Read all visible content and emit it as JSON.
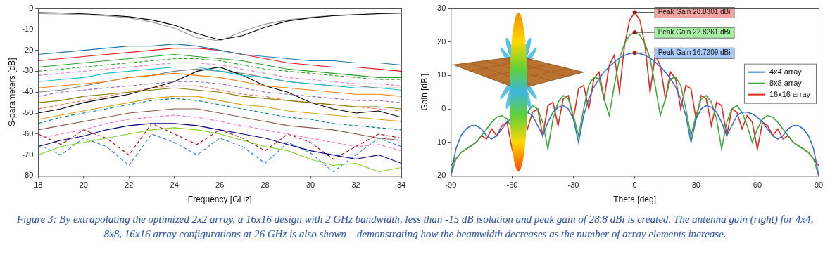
{
  "chart_data": [
    {
      "type": "line",
      "x_label": "Frequency [GHz]",
      "y_label": "S-parameters [dB]",
      "x": [
        18,
        19,
        20,
        21,
        22,
        23,
        24,
        25,
        26,
        27,
        28,
        29,
        30,
        31,
        32,
        33,
        34
      ],
      "xlim": [
        18,
        34
      ],
      "xticks": [
        18,
        20,
        22,
        24,
        26,
        28,
        30,
        32,
        34
      ],
      "ylim": [
        -80,
        0
      ],
      "yticks": [
        -80,
        -70,
        -60,
        -50,
        -40,
        -30,
        -20,
        -10,
        0
      ],
      "grid": false,
      "series": [
        {
          "color": "#000000",
          "line_style": "solid",
          "values": [
            -2,
            -2.2,
            -2.6,
            -3.2,
            -4,
            -5.5,
            -8,
            -12,
            -15,
            -13,
            -9,
            -6,
            -4.5,
            -3.5,
            -3,
            -2.5,
            -2.2
          ]
        },
        {
          "color": "#9a9a9a",
          "line_style": "solid",
          "values": [
            -2.5,
            -2.7,
            -3,
            -3.6,
            -4.5,
            -6.5,
            -9.5,
            -14,
            -15.5,
            -11,
            -7.5,
            -5.5,
            -4.2,
            -3.4,
            -2.9,
            -2.6,
            -2.4
          ]
        },
        {
          "color": "#1f77b4",
          "line_style": "solid",
          "values": [
            -22,
            -21,
            -20,
            -19,
            -18,
            -18,
            -17,
            -18,
            -20,
            -22,
            -23,
            -24,
            -25,
            -25,
            -26,
            -26,
            -27
          ]
        },
        {
          "color": "#e31a1c",
          "line_style": "solid",
          "values": [
            -25,
            -24,
            -23,
            -22,
            -21,
            -20,
            -19,
            -19,
            -20,
            -22,
            -24,
            -26,
            -27,
            -28,
            -28,
            -29,
            -30
          ]
        },
        {
          "color": "#2ca02c",
          "line_style": "solid",
          "values": [
            -28,
            -27,
            -26,
            -25,
            -24,
            -23,
            -22,
            -23,
            -24,
            -25,
            -27,
            -29,
            -30,
            -31,
            -32,
            -33,
            -33
          ]
        },
        {
          "color": "#e377c2",
          "line_style": "dashed",
          "values": [
            -32,
            -31,
            -30,
            -29,
            -28,
            -27,
            -26,
            -26,
            -27,
            -29,
            -31,
            -33,
            -34,
            -35,
            -36,
            -36,
            -37
          ]
        },
        {
          "color": "#17becf",
          "line_style": "solid",
          "values": [
            -35,
            -34,
            -33,
            -31,
            -30,
            -29,
            -28,
            -28,
            -30,
            -32,
            -33,
            -35,
            -36,
            -37,
            -38,
            -38,
            -39
          ]
        },
        {
          "color": "#ff7f0e",
          "line_style": "solid",
          "values": [
            -38,
            -37,
            -36,
            -35,
            -33,
            -32,
            -31,
            -32,
            -33,
            -35,
            -37,
            -38,
            -39,
            -40,
            -41,
            -41,
            -42
          ]
        },
        {
          "color": "#9467bd",
          "line_style": "dashed",
          "values": [
            -42,
            -40,
            -39,
            -38,
            -37,
            -36,
            -35,
            -35,
            -36,
            -38,
            -40,
            -41,
            -42,
            -43,
            -44,
            -44,
            -45
          ]
        },
        {
          "color": "#808000",
          "line_style": "solid",
          "values": [
            -45,
            -44,
            -42,
            -41,
            -40,
            -39,
            -38,
            -39,
            -40,
            -42,
            -43,
            -44,
            -45,
            -46,
            -47,
            -47,
            -48
          ]
        },
        {
          "color": "#000000",
          "line_style": "solid",
          "values": [
            -50,
            -48,
            -45,
            -43,
            -41,
            -38,
            -35,
            -30,
            -28,
            -32,
            -37,
            -40,
            -45,
            -48,
            -50,
            -49,
            -52
          ]
        },
        {
          "color": "#008080",
          "line_style": "dashed",
          "values": [
            -55,
            -52,
            -50,
            -48,
            -46,
            -44,
            -43,
            -44,
            -46,
            -48,
            -50,
            -52,
            -53,
            -55,
            -56,
            -57,
            -58
          ]
        },
        {
          "color": "#8c564b",
          "line_style": "solid",
          "values": [
            -58,
            -56,
            -54,
            -52,
            -50,
            -49,
            -48,
            -48,
            -50,
            -52,
            -54,
            -56,
            -57,
            -58,
            -60,
            -62,
            -63
          ]
        },
        {
          "color": "#ff69b4",
          "line_style": "dashed",
          "values": [
            -62,
            -60,
            -58,
            -55,
            -53,
            -52,
            -51,
            -52,
            -54,
            -56,
            -58,
            -60,
            -62,
            -64,
            -66,
            -65,
            -68
          ]
        },
        {
          "color": "#000080",
          "line_style": "solid",
          "values": [
            -66,
            -63,
            -61,
            -58,
            -56,
            -55,
            -55,
            -56,
            -58,
            -60,
            -62,
            -65,
            -68,
            -70,
            -72,
            -70,
            -74
          ]
        },
        {
          "color": "#7fd320",
          "line_style": "solid",
          "values": [
            -70,
            -66,
            -64,
            -62,
            -60,
            -58,
            -57,
            -58,
            -60,
            -63,
            -66,
            -68,
            -72,
            -75,
            -74,
            -78,
            -76
          ]
        },
        {
          "color": "#a50f15",
          "line_style": "dashed",
          "values": [
            -60,
            -65,
            -58,
            -62,
            -70,
            -55,
            -60,
            -65,
            -58,
            -62,
            -68,
            -60,
            -64,
            -72,
            -66,
            -60,
            -62
          ]
        },
        {
          "color": "#3a7bd5",
          "line_style": "dashed",
          "values": [
            -65,
            -70,
            -62,
            -66,
            -75,
            -60,
            -64,
            -70,
            -62,
            -66,
            -74,
            -64,
            -69,
            -78,
            -70,
            -62,
            -66
          ]
        },
        {
          "color": "#33a02c",
          "line_style": "dashed",
          "values": [
            -30,
            -29,
            -28,
            -27,
            -26,
            -25,
            -24,
            -24,
            -25,
            -27,
            -29,
            -30,
            -31,
            -32,
            -33,
            -34,
            -34
          ]
        },
        {
          "color": "#fb6a4a",
          "line_style": "dashed",
          "values": [
            -48,
            -46,
            -44,
            -42,
            -40,
            -38,
            -37,
            -37,
            -39,
            -41,
            -42,
            -44,
            -45,
            -46,
            -47,
            -48,
            -49
          ]
        },
        {
          "color": "#d4a017",
          "line_style": "solid",
          "values": [
            -53,
            -51,
            -49,
            -47,
            -45,
            -43,
            -42,
            -42,
            -44,
            -46,
            -47,
            -49,
            -50,
            -51,
            -52,
            -53,
            -54
          ]
        },
        {
          "color": "#7f7f7f",
          "line_style": "solid",
          "values": [
            -40,
            -39,
            -37,
            -35,
            -33,
            -32,
            -30,
            -29,
            -30,
            -31,
            -33,
            -35,
            -36,
            -37,
            -37,
            -38,
            -38
          ]
        }
      ]
    },
    {
      "type": "line",
      "x_label": "Theta [deg]",
      "y_label": "Gain [dBi]",
      "x": [
        -90,
        -87.5,
        -85,
        -82.5,
        -80,
        -77.5,
        -75,
        -72.5,
        -70,
        -67.5,
        -65,
        -62.5,
        -60,
        -57.5,
        -55,
        -52.5,
        -50,
        -47.5,
        -45,
        -42.5,
        -40,
        -37.5,
        -35,
        -32.5,
        -30,
        -27.5,
        -25,
        -22.5,
        -20,
        -17.5,
        -15,
        -12.5,
        -10,
        -7.5,
        -5,
        -2.5,
        0,
        2.5,
        5,
        7.5,
        10,
        12.5,
        15,
        17.5,
        20,
        22.5,
        25,
        27.5,
        30,
        32.5,
        35,
        37.5,
        40,
        42.5,
        45,
        47.5,
        50,
        52.5,
        55,
        57.5,
        60,
        62.5,
        65,
        67.5,
        70,
        72.5,
        75,
        77.5,
        80,
        82.5,
        85,
        87.5,
        90
      ],
      "xlim": [
        -90,
        90
      ],
      "xticks": [
        -90,
        -60,
        -30,
        0,
        30,
        60,
        90
      ],
      "ylim": [
        -20,
        30
      ],
      "yticks": [
        -20,
        -10,
        0,
        10,
        20,
        30
      ],
      "grid": false,
      "legend": "right",
      "series": [
        {
          "name": "4x4 array",
          "color": "#3a6fc4",
          "line_style": "solid",
          "values": [
            -20,
            -12,
            -8,
            -6,
            -5,
            -5,
            -6,
            -8,
            -9,
            -8,
            -6,
            -4,
            -2.5,
            -1.5,
            -1,
            -1,
            -2,
            -5,
            -8,
            -4,
            -1,
            0.5,
            1,
            0,
            -3,
            -10,
            -2,
            3,
            6.5,
            9,
            11,
            12.6,
            14,
            15.2,
            16,
            16.5,
            16.7209,
            16.5,
            16,
            15.2,
            14,
            12.6,
            11,
            9,
            6.5,
            3,
            -2,
            -10,
            -3,
            0,
            1,
            0.5,
            -1,
            -4,
            -8,
            -5,
            -2,
            -1,
            -1,
            -1.5,
            -2.5,
            -4,
            -6,
            -8,
            -9,
            -8,
            -6,
            -5,
            -5,
            -6,
            -8,
            -12,
            -20
          ]
        },
        {
          "name": "8x8 array",
          "color": "#3cab3c",
          "line_style": "solid",
          "values": [
            -20,
            -15,
            -13,
            -12,
            -11,
            -10,
            -8,
            -6,
            -4,
            -2.5,
            -2,
            -3,
            -6,
            -10,
            -5,
            -1,
            1,
            0,
            -4,
            -12,
            -3,
            2,
            4,
            3,
            -2,
            -8,
            0,
            7,
            9.5,
            9,
            3,
            -2,
            7,
            15,
            19.5,
            22,
            22.8261,
            22,
            19.5,
            15,
            7,
            -2,
            3,
            9,
            9.5,
            7,
            0,
            -8,
            -2,
            3,
            4,
            2,
            -3,
            -12,
            -4,
            0,
            1,
            -1,
            -5,
            -10,
            -6,
            -3,
            -2,
            -2.5,
            -4,
            -6,
            -8,
            -10,
            -11,
            -12,
            -13,
            -15,
            -20
          ]
        },
        {
          "name": "16x16 array",
          "color": "#e0281e",
          "line_style": "solid",
          "values": [
            -17,
            -15,
            -13,
            -12,
            -11,
            -10,
            -8,
            -9,
            -6,
            -8,
            -5,
            -4,
            -12,
            -4,
            -2,
            -6,
            -1,
            0,
            -8,
            1,
            2,
            -5,
            3,
            4,
            -3,
            6,
            7,
            0,
            9,
            11,
            3,
            13,
            16,
            5,
            19,
            26.5,
            28.8301,
            26.5,
            19,
            5,
            16,
            13,
            3,
            11,
            9,
            0,
            7,
            6,
            -3,
            4,
            3,
            -5,
            2,
            1,
            -8,
            0,
            -1,
            -6,
            -2,
            -4,
            -12,
            -4,
            -5,
            -8,
            -6,
            -9,
            -8,
            -10,
            -11,
            -12,
            -13,
            -15,
            -17
          ]
        }
      ],
      "annotations": [
        {
          "text": "Peak Gain 28.8301 dBi",
          "x": 0,
          "y": 28.8301,
          "color": "#f4a3a3"
        },
        {
          "text": "Peak Gain 22.8261 dBi",
          "x": 0,
          "y": 22.8261,
          "color": "#a6eea0"
        },
        {
          "text": "Peak Gain 16.7209 dBi",
          "x": 0,
          "y": 16.7209,
          "color": "#a8c8f6"
        }
      ]
    }
  ],
  "caption": "Figure 3: By extrapolating the optimized 2x2 array, a 16x16 design with 2 GHz bandwidth, less than -15 dB isolation and peak gain of 28.8 dBi is created. The antenna gain (right) for 4x4, 8x8, 16x16 array configurations at 26 GHz is also shown – demonstrating how the beamwidth decreases as the number of array elements increase."
}
